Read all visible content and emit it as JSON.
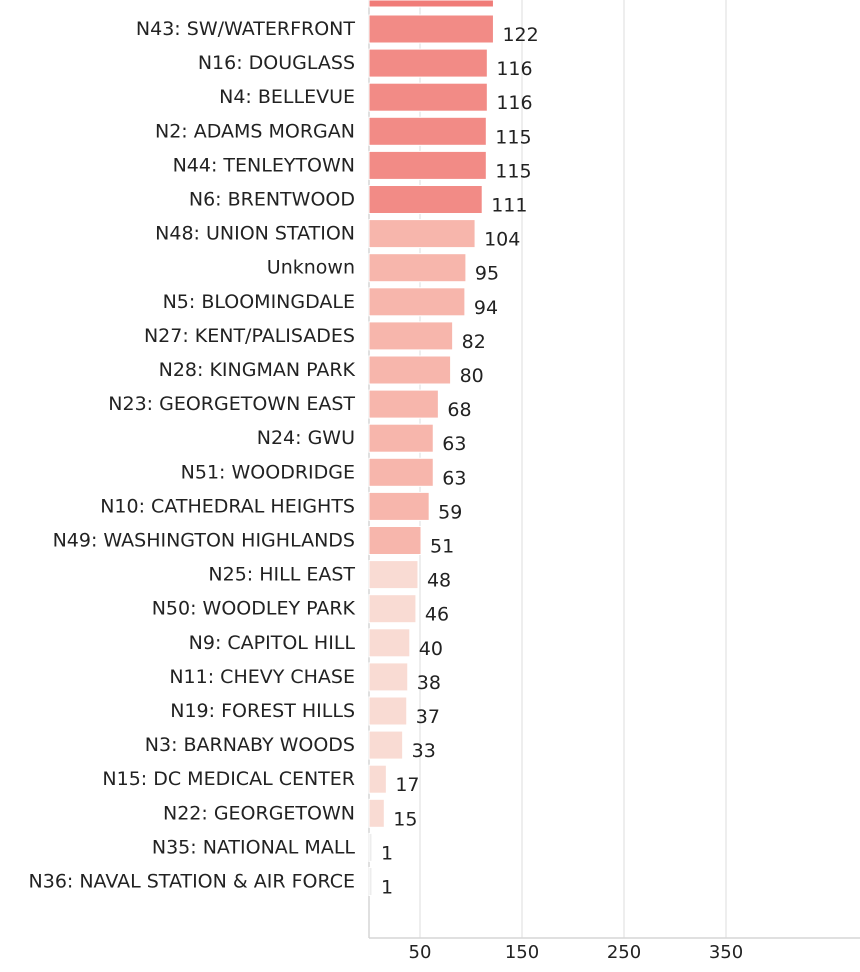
{
  "chart_data": {
    "type": "bar",
    "orientation": "horizontal",
    "categories": [
      "N43: SW/WATERFRONT",
      "N16: DOUGLASS",
      "N4: BELLEVUE",
      "N2: ADAMS MORGAN",
      "N44: TENLEYTOWN",
      "N6: BRENTWOOD",
      "N48: UNION STATION",
      "Unknown",
      "N5: BLOOMINGDALE",
      "N27: KENT/PALISADES",
      "N28: KINGMAN PARK",
      "N23: GEORGETOWN EAST",
      "N24: GWU",
      "N51: WOODRIDGE",
      "N10: CATHEDRAL HEIGHTS",
      "N49: WASHINGTON HIGHLANDS",
      "N25: HILL EAST",
      "N50: WOODLEY PARK",
      "N9: CAPITOL HILL",
      "N11: CHEVY CHASE",
      "N19: FOREST HILLS",
      "N3: BARNABY WOODS",
      "N15: DC MEDICAL CENTER",
      "N22: GEORGETOWN",
      "N35: NATIONAL MALL",
      "N36: NAVAL STATION & AIR FORCE"
    ],
    "values": [
      122,
      116,
      116,
      115,
      115,
      111,
      104,
      95,
      94,
      82,
      80,
      68,
      63,
      63,
      59,
      51,
      48,
      46,
      40,
      38,
      37,
      33,
      17,
      15,
      1,
      1
    ],
    "x_ticks": [
      50,
      150,
      250,
      350
    ],
    "xlim": [
      0,
      470
    ],
    "grid": true,
    "title": "",
    "xlabel": "",
    "ylabel": "",
    "colors": {
      "high": "#f28b86",
      "mid": "#f7b6ac",
      "low": "#f9dbd3",
      "tiny": "#ededed",
      "top_cut": "#f07c78"
    }
  }
}
